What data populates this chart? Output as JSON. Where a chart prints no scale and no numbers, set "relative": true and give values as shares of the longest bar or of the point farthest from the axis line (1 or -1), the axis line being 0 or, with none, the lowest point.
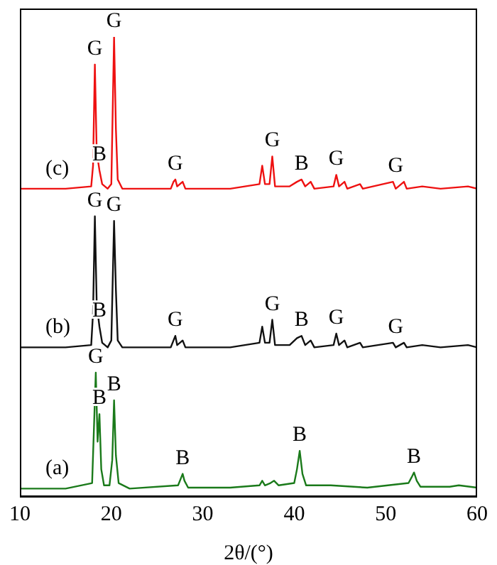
{
  "chart_data": {
    "type": "line",
    "relative": true,
    "xlabel": "2θ/(°)",
    "xlim": [
      10,
      60
    ],
    "xticks": [
      10,
      20,
      30,
      40,
      50,
      60
    ],
    "legend": false,
    "grid": false,
    "marker": "none",
    "line_style": "solid",
    "series": [
      {
        "name": "(a)",
        "color": "#1a7a1a",
        "x": [
          10,
          15,
          17.9,
          18.1,
          18.3,
          18.5,
          18.7,
          18.9,
          19.2,
          19.8,
          20.1,
          20.3,
          20.5,
          20.8,
          22,
          27.3,
          27.6,
          27.8,
          28.0,
          28.4,
          33,
          36.2,
          36.5,
          36.8,
          37.4,
          37.8,
          38.3,
          40.0,
          40.3,
          40.6,
          40.9,
          41.3,
          44,
          48,
          52.5,
          52.9,
          53.1,
          53.4,
          53.8,
          57,
          58,
          60
        ],
        "values": [
          0.018,
          0.018,
          0.03,
          0.15,
          0.27,
          0.12,
          0.18,
          0.06,
          0.025,
          0.025,
          0.08,
          0.21,
          0.09,
          0.03,
          0.018,
          0.025,
          0.04,
          0.05,
          0.035,
          0.02,
          0.02,
          0.025,
          0.035,
          0.025,
          0.03,
          0.035,
          0.025,
          0.03,
          0.06,
          0.1,
          0.05,
          0.025,
          0.025,
          0.02,
          0.03,
          0.045,
          0.053,
          0.035,
          0.022,
          0.022,
          0.025,
          0.02
        ]
      },
      {
        "name": "(b)",
        "color": "#111111",
        "x": [
          10,
          15,
          17.8,
          18.0,
          18.2,
          18.4,
          18.7,
          19.0,
          19.6,
          20.0,
          20.3,
          20.5,
          20.7,
          21.2,
          26.5,
          26.8,
          27.0,
          27.2,
          27.8,
          28.1,
          33,
          36.2,
          36.5,
          36.8,
          37.3,
          37.6,
          37.9,
          39.5,
          40.3,
          40.8,
          41.2,
          41.8,
          42.2,
          44.3,
          44.6,
          44.9,
          45.5,
          45.8,
          47.2,
          47.5,
          50.8,
          51.1,
          52.0,
          52.3,
          54,
          56,
          59,
          60
        ],
        "values": [
          0.325,
          0.325,
          0.33,
          0.4,
          0.61,
          0.42,
          0.37,
          0.335,
          0.325,
          0.34,
          0.6,
          0.45,
          0.34,
          0.325,
          0.325,
          0.34,
          0.35,
          0.33,
          0.34,
          0.325,
          0.325,
          0.335,
          0.37,
          0.335,
          0.335,
          0.385,
          0.33,
          0.33,
          0.345,
          0.35,
          0.33,
          0.34,
          0.325,
          0.33,
          0.355,
          0.33,
          0.34,
          0.325,
          0.335,
          0.325,
          0.335,
          0.325,
          0.335,
          0.325,
          0.33,
          0.325,
          0.33,
          0.325
        ]
      },
      {
        "name": "(c)",
        "color": "#ee1111",
        "x": [
          10,
          15,
          17.8,
          18.0,
          18.2,
          18.4,
          18.7,
          19.0,
          19.6,
          20.0,
          20.3,
          20.5,
          20.7,
          21.2,
          26.5,
          26.8,
          27.0,
          27.2,
          27.8,
          28.1,
          33,
          36.2,
          36.5,
          36.8,
          37.3,
          37.6,
          37.9,
          39.5,
          40.3,
          40.8,
          41.2,
          41.8,
          42.2,
          44.3,
          44.6,
          44.9,
          45.5,
          45.8,
          47.2,
          47.5,
          50.8,
          51.1,
          52.0,
          52.3,
          54,
          56,
          59,
          60
        ],
        "values": [
          0.67,
          0.67,
          0.675,
          0.72,
          0.94,
          0.75,
          0.71,
          0.68,
          0.67,
          0.68,
          1.0,
          0.8,
          0.69,
          0.67,
          0.67,
          0.685,
          0.69,
          0.675,
          0.685,
          0.67,
          0.67,
          0.68,
          0.72,
          0.68,
          0.68,
          0.74,
          0.675,
          0.675,
          0.685,
          0.69,
          0.675,
          0.685,
          0.67,
          0.675,
          0.7,
          0.675,
          0.685,
          0.67,
          0.68,
          0.67,
          0.685,
          0.67,
          0.685,
          0.67,
          0.675,
          0.67,
          0.675,
          0.67
        ]
      }
    ],
    "annotations": [
      {
        "text": "G",
        "x": 18.2,
        "y": 0.94
      },
      {
        "text": "G",
        "x": 20.3,
        "y": 1.0
      },
      {
        "text": "B",
        "x": 18.7,
        "y": 0.71
      },
      {
        "text": "G",
        "x": 27.0,
        "y": 0.69
      },
      {
        "text": "G",
        "x": 37.6,
        "y": 0.74
      },
      {
        "text": "B",
        "x": 40.8,
        "y": 0.69
      },
      {
        "text": "G",
        "x": 44.6,
        "y": 0.7
      },
      {
        "text": "G",
        "x": 51.1,
        "y": 0.685
      },
      {
        "text": "G",
        "x": 18.2,
        "y": 0.61
      },
      {
        "text": "G",
        "x": 20.3,
        "y": 0.6
      },
      {
        "text": "B",
        "x": 18.7,
        "y": 0.37
      },
      {
        "text": "G",
        "x": 27.0,
        "y": 0.35
      },
      {
        "text": "G",
        "x": 37.6,
        "y": 0.385
      },
      {
        "text": "B",
        "x": 40.8,
        "y": 0.35
      },
      {
        "text": "G",
        "x": 44.6,
        "y": 0.355
      },
      {
        "text": "G",
        "x": 51.1,
        "y": 0.335
      },
      {
        "text": "G",
        "x": 18.3,
        "y": 0.27
      },
      {
        "text": "B",
        "x": 18.7,
        "y": 0.18
      },
      {
        "text": "B",
        "x": 20.3,
        "y": 0.21
      },
      {
        "text": "B",
        "x": 27.8,
        "y": 0.05
      },
      {
        "text": "B",
        "x": 40.6,
        "y": 0.1
      },
      {
        "text": "B",
        "x": 53.1,
        "y": 0.053
      }
    ]
  }
}
